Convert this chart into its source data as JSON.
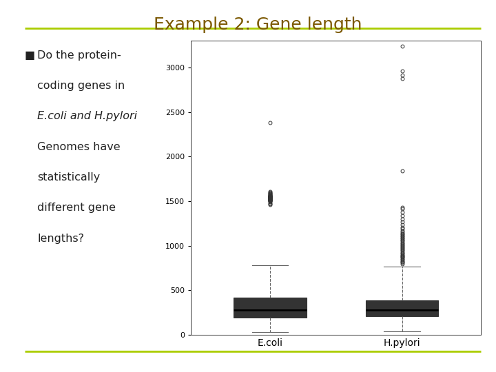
{
  "title": "Example 2: Gene length",
  "title_color": "#7B5800",
  "title_fontsize": 18,
  "bg_color": "#FFFFFF",
  "line_color": "#AACC00",
  "bullet_text_lines": [
    "Do the protein-",
    "coding genes in",
    "E.coli and H.pylori",
    "Genomes have",
    "statistically",
    "different gene",
    "lengths?"
  ],
  "text_color": "#222222",
  "text_fontsize": 11.5,
  "ecoli": {
    "label": "E.coli",
    "whislo": 28,
    "q1": 192,
    "med": 282,
    "q3": 417,
    "whishi": 780,
    "fliers": [
      1460,
      1470,
      1480,
      1490,
      1500,
      1505,
      1508,
      1510,
      1512,
      1514,
      1516,
      1518,
      1520,
      1522,
      1524,
      1526,
      1528,
      1530,
      1532,
      1534,
      1536,
      1538,
      1540,
      1542,
      1544,
      1546,
      1548,
      1550,
      1552,
      1554,
      1556,
      1558,
      1560,
      1563,
      1566,
      1570,
      1574,
      1578,
      1582,
      1586,
      1592,
      1600,
      1610,
      2380
    ]
  },
  "hpylori": {
    "label": "H.pylori",
    "whislo": 42,
    "q1": 207,
    "med": 282,
    "q3": 387,
    "whishi": 762,
    "fliers": [
      800,
      810,
      820,
      830,
      840,
      852,
      863,
      874,
      882,
      891,
      900,
      912,
      924,
      936,
      948,
      960,
      972,
      984,
      996,
      1008,
      1020,
      1032,
      1044,
      1056,
      1068,
      1080,
      1092,
      1104,
      1116,
      1128,
      1140,
      1155,
      1170,
      1190,
      1210,
      1235,
      1265,
      1300,
      1340,
      1380,
      1415,
      1430,
      1840,
      2880,
      2920,
      2960,
      3240
    ]
  },
  "ylim": [
    0,
    3300
  ],
  "yticks": [
    0,
    500,
    1000,
    1500,
    2000,
    2500,
    3000
  ],
  "box_facecolor": "#FFFFFF",
  "median_color": "#000000",
  "whisker_color": "#666666",
  "flier_edgecolor": "#333333"
}
